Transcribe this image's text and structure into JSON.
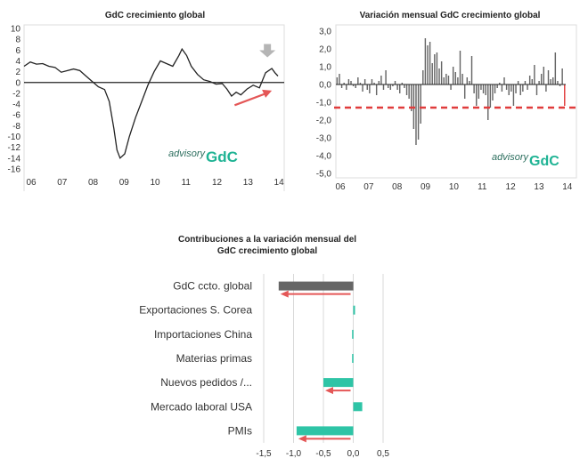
{
  "colors": {
    "line": "#222222",
    "bar_dark": "#666666",
    "bar_teal": "#2ec4a6",
    "accent_red": "#e45757",
    "dashed_red": "#e03c3c",
    "axis_zero": "#222222",
    "frame": "#cccccc",
    "watermark_teal": "#1fb394",
    "watermark_dark": "#2c6e5e",
    "arrow_gray": "#b5b5b5"
  },
  "chart_data": [
    {
      "type": "line",
      "title": "GdC crecimiento global",
      "xlabel": "",
      "ylabel": "",
      "x_ticks": [
        "06",
        "07",
        "08",
        "09",
        "10",
        "11",
        "12",
        "13",
        "14"
      ],
      "x_range": [
        2006,
        2014.4
      ],
      "ylim": [
        -16,
        10
      ],
      "y_ticks": [
        "10",
        "8",
        "6",
        "4",
        "2",
        "0",
        "-2",
        "-4",
        "-6",
        "-8",
        "-10",
        "-12",
        "-14",
        "-16"
      ],
      "series": [
        {
          "name": "GdC crecimiento global",
          "points": [
            [
              2006.0,
              3.0
            ],
            [
              2006.2,
              3.8
            ],
            [
              2006.4,
              3.4
            ],
            [
              2006.6,
              3.5
            ],
            [
              2006.8,
              3.0
            ],
            [
              2007.0,
              2.8
            ],
            [
              2007.2,
              1.9
            ],
            [
              2007.4,
              2.2
            ],
            [
              2007.6,
              2.5
            ],
            [
              2007.8,
              2.2
            ],
            [
              2008.0,
              1.2
            ],
            [
              2008.2,
              0.2
            ],
            [
              2008.4,
              -0.8
            ],
            [
              2008.6,
              -1.3
            ],
            [
              2008.75,
              -3.5
            ],
            [
              2008.9,
              -8.5
            ],
            [
              2009.0,
              -12.5
            ],
            [
              2009.1,
              -14.0
            ],
            [
              2009.25,
              -13.2
            ],
            [
              2009.4,
              -10.0
            ],
            [
              2009.6,
              -6.5
            ],
            [
              2009.8,
              -3.5
            ],
            [
              2010.0,
              -0.5
            ],
            [
              2010.2,
              2.0
            ],
            [
              2010.4,
              4.0
            ],
            [
              2010.6,
              3.5
            ],
            [
              2010.8,
              3.0
            ],
            [
              2011.0,
              5.0
            ],
            [
              2011.1,
              6.2
            ],
            [
              2011.25,
              5.0
            ],
            [
              2011.4,
              3.0
            ],
            [
              2011.6,
              1.5
            ],
            [
              2011.8,
              0.5
            ],
            [
              2012.0,
              0.2
            ],
            [
              2012.2,
              -0.3
            ],
            [
              2012.4,
              -0.2
            ],
            [
              2012.55,
              -1.2
            ],
            [
              2012.7,
              -2.5
            ],
            [
              2012.85,
              -1.8
            ],
            [
              2013.0,
              -2.3
            ],
            [
              2013.2,
              -1.2
            ],
            [
              2013.4,
              -0.5
            ],
            [
              2013.6,
              -1.0
            ],
            [
              2013.8,
              1.8
            ],
            [
              2014.0,
              2.6
            ],
            [
              2014.1,
              1.8
            ],
            [
              2014.2,
              1.2
            ]
          ]
        }
      ],
      "annotations": [
        {
          "type": "arrow",
          "color": "red",
          "direction": "up-right",
          "from": [
            2012.8,
            -4.2
          ],
          "to": [
            2014.0,
            -1.5
          ]
        },
        {
          "type": "arrow",
          "color": "gray",
          "direction": "down",
          "at": [
            2013.8,
            3.0
          ]
        }
      ],
      "watermark": {
        "prefix": "advisory",
        "brand": "GdC"
      }
    },
    {
      "type": "bar",
      "title": "Variación mensual GdC crecimiento global",
      "xlabel": "",
      "ylabel": "",
      "x_ticks": [
        "06",
        "07",
        "08",
        "09",
        "10",
        "11",
        "12",
        "13",
        "14"
      ],
      "x_range": [
        2006,
        2014.1
      ],
      "ylim": [
        -5,
        3
      ],
      "y_ticks": [
        "3,0",
        "2,0",
        "1,0",
        "0,0",
        "-1,0",
        "-2,0",
        "-3,0",
        "-4,0",
        "-5,0"
      ],
      "reference_line": {
        "value": -1.3,
        "style": "dashed",
        "color": "red"
      },
      "highlight_last": "red",
      "values": [
        0.4,
        0.6,
        -0.2,
        0.1,
        -0.3,
        0.3,
        0.2,
        -0.1,
        -0.2,
        0.4,
        0.1,
        -0.4,
        0.3,
        -0.3,
        -0.5,
        0.3,
        0.1,
        -0.6,
        0.2,
        0.5,
        -0.3,
        0.8,
        -0.2,
        -0.3,
        -0.1,
        0.2,
        -0.3,
        -0.5,
        0.1,
        -0.2,
        -0.6,
        -0.8,
        -1.5,
        -2.5,
        -3.4,
        -3.1,
        -2.2,
        0.8,
        2.6,
        2.2,
        2.4,
        1.2,
        1.7,
        1.8,
        0.9,
        1.3,
        0.4,
        0.6,
        0.5,
        -0.3,
        1.0,
        0.7,
        0.4,
        1.9,
        0.6,
        -0.8,
        0.4,
        0.2,
        1.6,
        -0.5,
        -1.2,
        -0.8,
        -0.3,
        -0.5,
        -0.6,
        -2.0,
        -1.3,
        -0.9,
        -0.5,
        -0.2,
        0.1,
        -0.4,
        0.4,
        -0.3,
        -0.6,
        -0.4,
        -1.2,
        -0.5,
        0.2,
        -0.6,
        -0.4,
        0.2,
        -0.3,
        0.5,
        0.3,
        1.1,
        -0.6,
        0.2,
        0.6,
        1.0,
        -0.4,
        0.8,
        0.3,
        0.4,
        1.8,
        0.2,
        -0.1,
        0.9,
        -1.2
      ],
      "watermark": {
        "prefix": "advisory",
        "brand": "GdC"
      }
    },
    {
      "type": "bar",
      "orientation": "horizontal",
      "title": "Contribuciones a la variación mensual del GdC crecimiento global",
      "title_lines": [
        "Contribuciones a la variación mensual del",
        "GdC crecimiento global"
      ],
      "xlabel": "",
      "ylabel": "",
      "xlim": [
        -1.5,
        0.5
      ],
      "x_ticks": [
        "-1,5",
        "-1,0",
        "-0,5",
        "0,0",
        "0,5"
      ],
      "categories": [
        "GdC ccto. global",
        "Exportaciones S. Corea",
        "Importaciones China",
        "Materias primas",
        "Nuevos pedidos /...",
        "Mercado laboral USA",
        "PMIs"
      ],
      "values": [
        -1.25,
        0.03,
        -0.02,
        -0.02,
        -0.5,
        0.15,
        -0.95
      ],
      "bar_colors": [
        "dark",
        "teal",
        "teal",
        "teal",
        "teal",
        "teal",
        "teal"
      ],
      "red_arrows_left_on": [
        "GdC ccto. global",
        "Nuevos pedidos /...",
        "PMIs"
      ]
    }
  ]
}
